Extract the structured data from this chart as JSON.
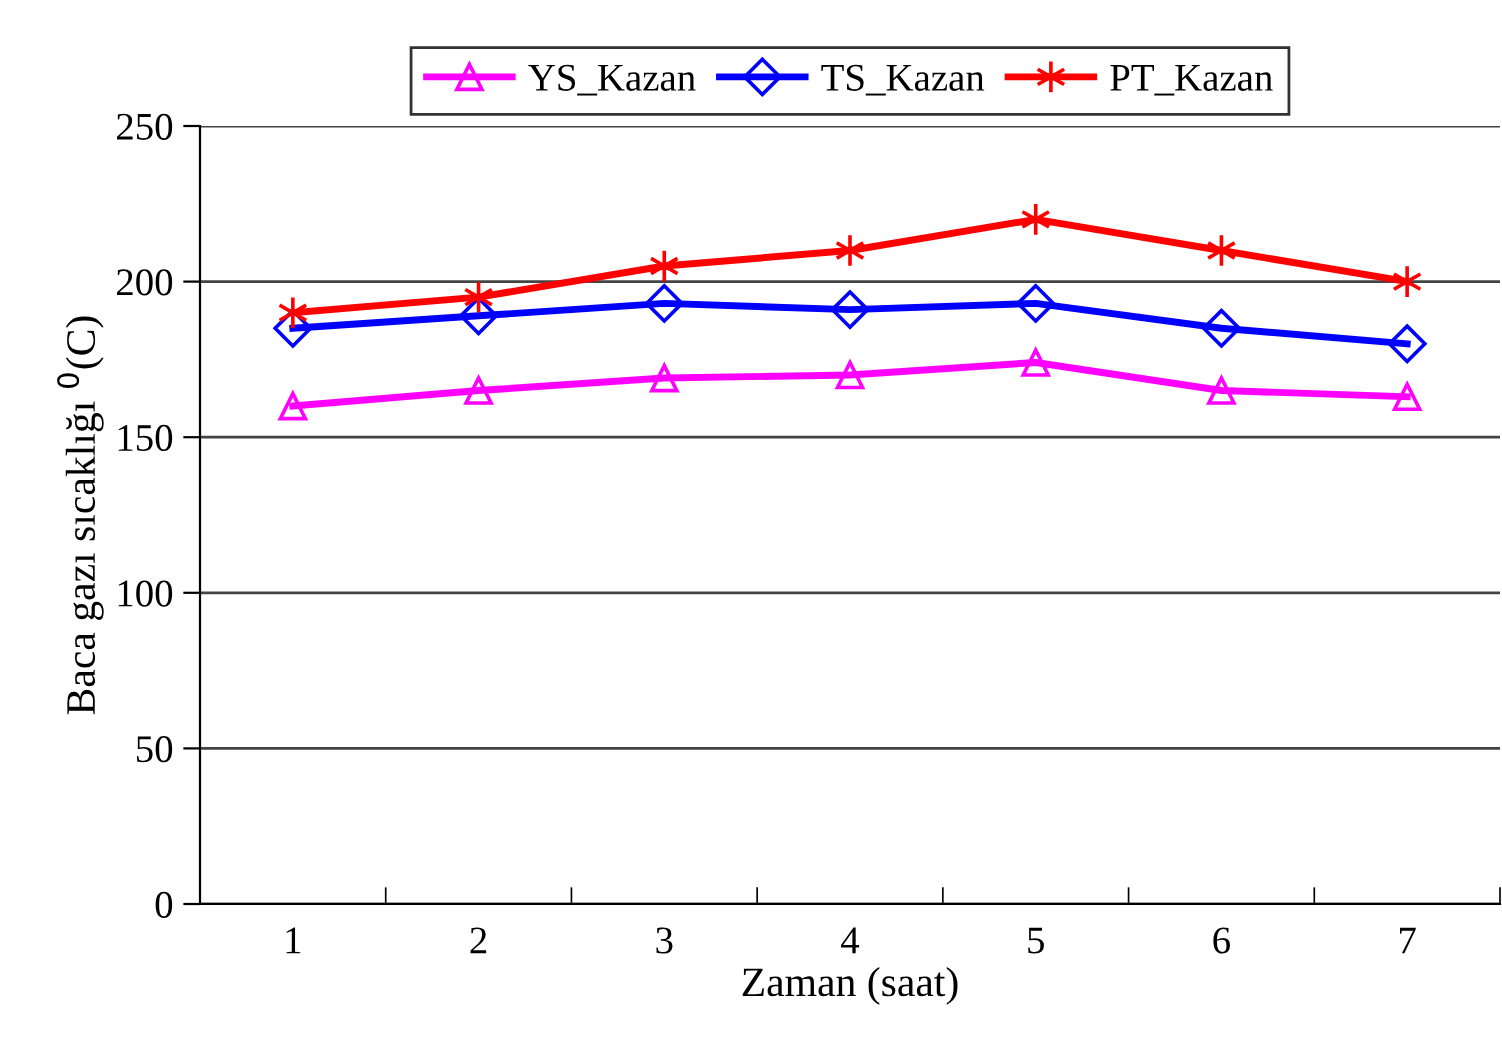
{
  "chart_data": {
    "type": "line",
    "xlabel": "Zaman (saat)",
    "ylabel": "Baca gazı sıcaklığı $^{0}$(C)",
    "categories": [
      "1",
      "2",
      "3",
      "4",
      "5",
      "6",
      "7"
    ],
    "series": [
      {
        "name": "YS_Kazan",
        "color": "#ff00ff",
        "marker": "triangle",
        "values": [
          160,
          165,
          169,
          170,
          174,
          165,
          163
        ]
      },
      {
        "name": "TS_Kazan",
        "color": "#0000ff",
        "marker": "diamond",
        "values": [
          185,
          189,
          193,
          191,
          193,
          185,
          180
        ]
      },
      {
        "name": "PT_Kazan",
        "color": "#ff0000",
        "marker": "cross",
        "values": [
          190,
          195,
          205,
          210,
          220,
          210,
          200
        ]
      }
    ],
    "ylim": [
      0,
      250
    ],
    "yticks": [
      0,
      50,
      100,
      150,
      200,
      250
    ],
    "grid": "y",
    "legend": "top",
    "line_style": "solid"
  }
}
